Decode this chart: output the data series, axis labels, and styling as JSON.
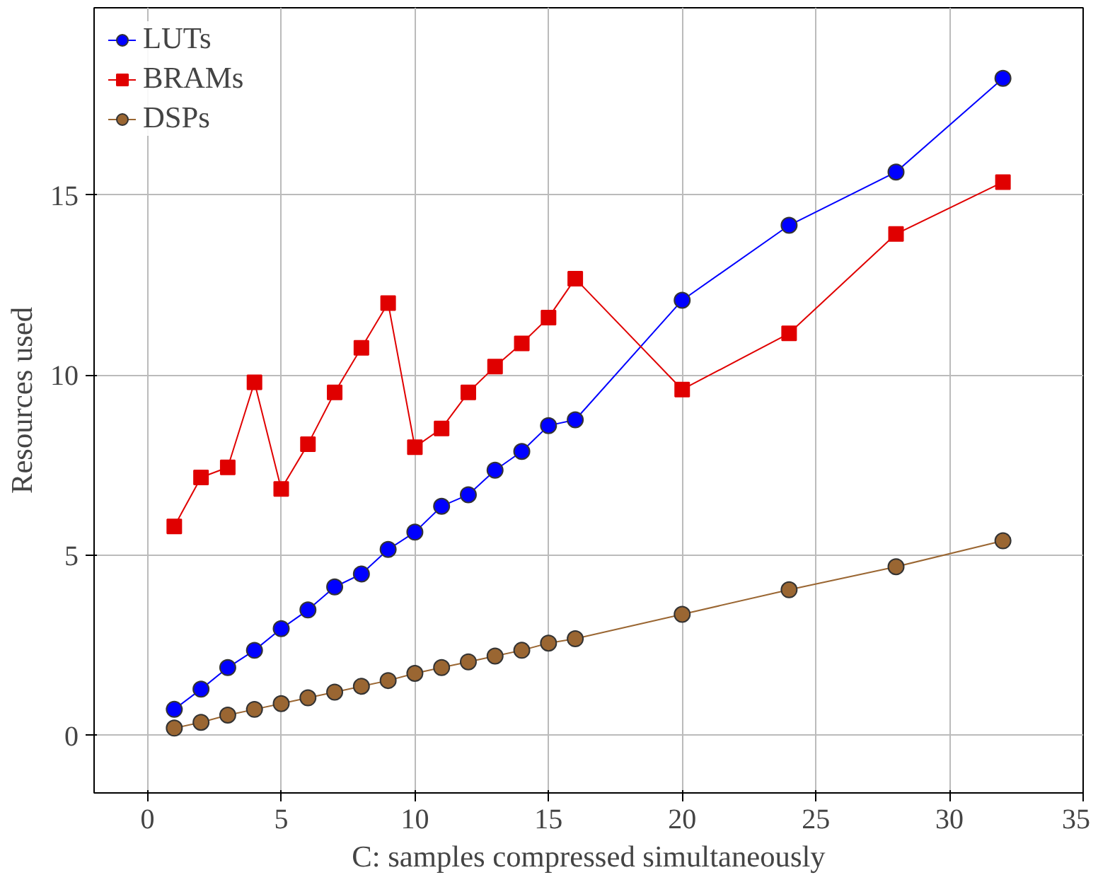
{
  "chart_data": {
    "type": "line",
    "xlabel": "C: samples compressed simultaneously",
    "ylabel": "Resources used",
    "xlim": [
      -2,
      35
    ],
    "ylim": [
      -1.6,
      20.2
    ],
    "xticks": [
      0,
      5,
      10,
      15,
      20,
      25,
      30,
      35
    ],
    "yticks": [
      0,
      5,
      10,
      15
    ],
    "grid": true,
    "legend": "top left",
    "x": [
      1,
      2,
      3,
      4,
      5,
      6,
      7,
      8,
      9,
      10,
      11,
      12,
      13,
      14,
      15,
      16,
      20,
      24,
      28,
      32
    ],
    "series": [
      {
        "name": "LUTs",
        "color": "#0000ff",
        "marker": "circle",
        "values": [
          0.72,
          1.28,
          1.88,
          2.36,
          2.96,
          3.48,
          4.12,
          4.48,
          5.16,
          5.64,
          6.36,
          6.68,
          7.36,
          7.88,
          8.6,
          8.76,
          12.08,
          14.16,
          15.64,
          18.24
        ]
      },
      {
        "name": "BRAMs",
        "color": "#e00000",
        "marker": "square",
        "values": [
          5.8,
          7.16,
          7.44,
          9.8,
          6.84,
          8.08,
          9.52,
          10.76,
          12.0,
          8.0,
          8.52,
          9.52,
          10.24,
          10.88,
          11.6,
          12.68,
          9.6,
          11.16,
          13.92,
          15.36
        ]
      },
      {
        "name": "DSPs",
        "color": "#9a6632",
        "marker": "circle",
        "values": [
          0.2,
          0.36,
          0.56,
          0.72,
          0.88,
          1.04,
          1.2,
          1.36,
          1.52,
          1.72,
          1.88,
          2.04,
          2.2,
          2.36,
          2.56,
          2.68,
          3.36,
          4.04,
          4.68,
          5.4
        ]
      }
    ]
  }
}
